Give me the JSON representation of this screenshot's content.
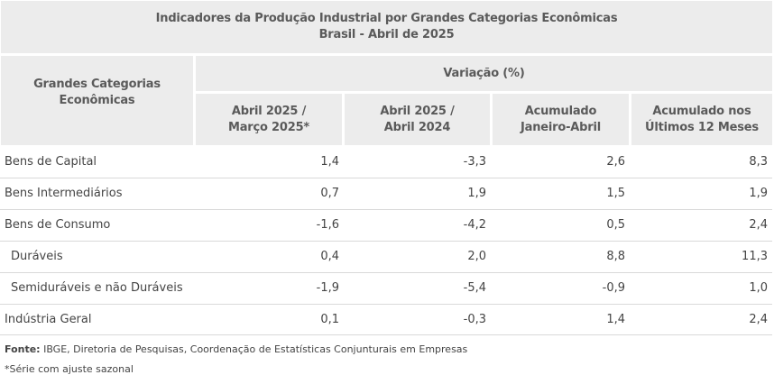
{
  "table": {
    "title_line1": "Indicadores da Produção Industrial por Grandes Categorias Econômicas",
    "title_line2": "Brasil - Abril de 2025",
    "row_header_line1": "Grandes Categorias",
    "row_header_line2": "Econômicas",
    "group_header": "Variação (%)",
    "columns": [
      {
        "line1": "Abril 2025 /",
        "line2": "Março 2025*"
      },
      {
        "line1": "Abril 2025 /",
        "line2": "Abril 2024"
      },
      {
        "line1": "Acumulado",
        "line2": "Janeiro-Abril"
      },
      {
        "line1": "Acumulado nos",
        "line2": "Últimos 12 Meses"
      }
    ],
    "rows": [
      {
        "label": "Bens de Capital",
        "values": [
          "1,4",
          "-3,3",
          "2,6",
          "8,3"
        ]
      },
      {
        "label": "Bens Intermediários",
        "values": [
          "0,7",
          "1,9",
          "1,5",
          "1,9"
        ]
      },
      {
        "label": "Bens de Consumo",
        "values": [
          "-1,6",
          "-4,2",
          "0,5",
          "2,4"
        ]
      },
      {
        "label": "Duráveis",
        "values": [
          "0,4",
          "2,0",
          "8,8",
          "11,3"
        ]
      },
      {
        "label": "Semiduráveis e não Duráveis",
        "values": [
          "-1,9",
          "-5,4",
          "-0,9",
          "1,0"
        ]
      },
      {
        "label": "Indústria Geral",
        "values": [
          "0,1",
          "-0,3",
          "1,4",
          "2,4"
        ]
      }
    ]
  },
  "footer": {
    "source_label": "Fonte:",
    "source_text": " IBGE, Diretoria de Pesquisas, Coordenação de Estatísticas Conjunturais em Empresas",
    "note": "*Série com ajuste sazonal"
  }
}
